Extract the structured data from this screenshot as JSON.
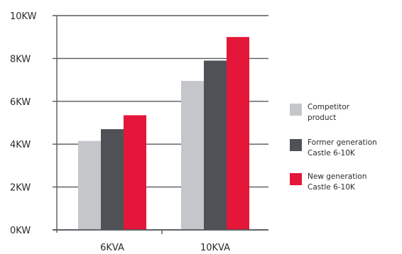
{
  "chart_data": {
    "type": "bar",
    "categories": [
      "6KVA",
      "10KVA"
    ],
    "ylim": [
      0,
      10
    ],
    "yticks": [
      0,
      2,
      4,
      6,
      8,
      10
    ],
    "ytick_labels": [
      "0KW",
      "2KW",
      "4KW",
      "6KW",
      "8KW",
      "10KW"
    ],
    "grid": true,
    "legend_position": "right",
    "series": [
      {
        "name": "Competitor product",
        "legend_lines": [
          "Competitor",
          "product"
        ],
        "color": "#c4c6c9",
        "values": [
          4.15,
          6.95
        ]
      },
      {
        "name": "Former generation Castle 6-10K",
        "legend_lines": [
          "Former generation",
          "Castle 6-10K"
        ],
        "color": "#4e5256",
        "values": [
          4.7,
          7.9
        ]
      },
      {
        "name": "New generation Castle 6-10K",
        "legend_lines": [
          "New generation",
          "Castle 6-10K"
        ],
        "color": "#e4163a",
        "values": [
          5.35,
          9.0
        ]
      }
    ]
  }
}
